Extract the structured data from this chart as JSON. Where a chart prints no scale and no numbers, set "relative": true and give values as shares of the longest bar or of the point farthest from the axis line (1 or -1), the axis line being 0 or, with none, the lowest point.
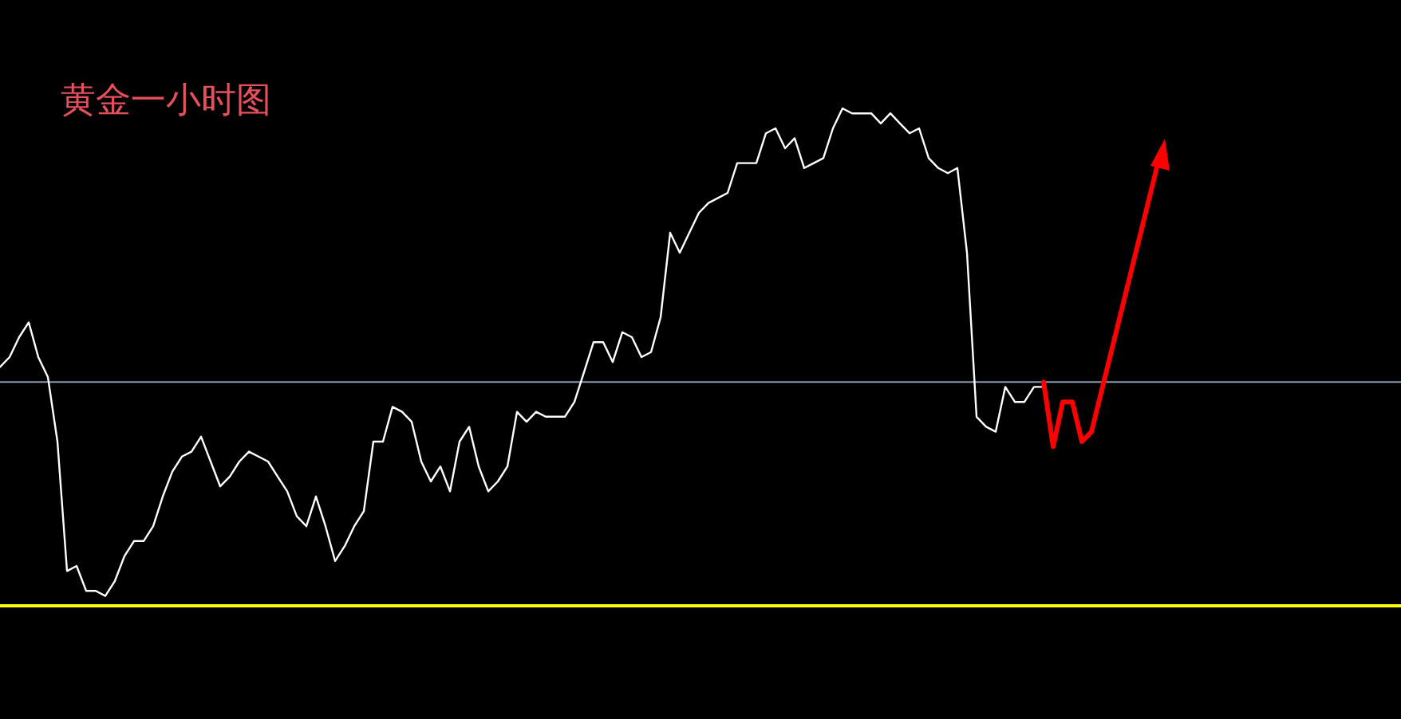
{
  "chart_data": {
    "type": "line",
    "title": "黄金一小时图",
    "relative": true,
    "categories": [
      null,
      null,
      null,
      null,
      null,
      null,
      null,
      null,
      null,
      null,
      null,
      null,
      null,
      null,
      null,
      null,
      null,
      null,
      null,
      null,
      null,
      null,
      null,
      null,
      null,
      null,
      null,
      null,
      null,
      null,
      null,
      null,
      null,
      null,
      null,
      null,
      null,
      null,
      null,
      null,
      null,
      null,
      null,
      null,
      null,
      null,
      null,
      null,
      null,
      null,
      null,
      null,
      null,
      null,
      null,
      null,
      null,
      null,
      null,
      null,
      null,
      null,
      null,
      null,
      null,
      null,
      null,
      null,
      null,
      null,
      null,
      null,
      null,
      null,
      null,
      null,
      null,
      null,
      null,
      null,
      null,
      null,
      null,
      null,
      null,
      null,
      null,
      null,
      null,
      null,
      null,
      null,
      null,
      null,
      null,
      null,
      null,
      null,
      null,
      null,
      null,
      null,
      null,
      null,
      null,
      null,
      null,
      null,
      null,
      null,
      null,
      null,
      null,
      null,
      null
    ],
    "series": [
      {
        "color": "#ffffff",
        "values": [
          0.48,
          0.5,
          0.54,
          0.57,
          0.5,
          0.46,
          0.33,
          0.07,
          0.08,
          0.03,
          0.03,
          0.02,
          0.05,
          0.1,
          0.13,
          0.13,
          0.16,
          0.22,
          0.27,
          0.3,
          0.31,
          0.34,
          0.29,
          0.24,
          0.26,
          0.29,
          0.31,
          0.3,
          0.29,
          0.26,
          0.23,
          0.18,
          0.16,
          0.22,
          0.16,
          0.09,
          0.12,
          0.16,
          0.19,
          0.33,
          0.33,
          0.4,
          0.39,
          0.37,
          0.29,
          0.25,
          0.28,
          0.23,
          0.33,
          0.36,
          0.28,
          0.23,
          0.25,
          0.28,
          0.39,
          0.37,
          0.39,
          0.38,
          0.38,
          0.38,
          0.41,
          0.47,
          0.53,
          0.53,
          0.49,
          0.55,
          0.54,
          0.5,
          0.51,
          0.58,
          0.75,
          0.71,
          0.75,
          0.79,
          0.81,
          0.82,
          0.83,
          0.89,
          0.89,
          0.89,
          0.95,
          0.96,
          0.92,
          0.94,
          0.88,
          0.89,
          0.9,
          0.96,
          1.0,
          0.99,
          0.99,
          0.99,
          0.97,
          0.99,
          0.97,
          0.95,
          0.96,
          0.9,
          0.88,
          0.87,
          0.88,
          0.71,
          0.38,
          0.36,
          0.35,
          0.44,
          0.41,
          0.41,
          0.44,
          0.44,
          null,
          null,
          null,
          null,
          null
        ]
      },
      {
        "color": "#ff0000",
        "values": [
          null,
          null,
          null,
          null,
          null,
          null,
          null,
          null,
          null,
          null,
          null,
          null,
          null,
          null,
          null,
          null,
          null,
          null,
          null,
          null,
          null,
          null,
          null,
          null,
          null,
          null,
          null,
          null,
          null,
          null,
          null,
          null,
          null,
          null,
          null,
          null,
          null,
          null,
          null,
          null,
          null,
          null,
          null,
          null,
          null,
          null,
          null,
          null,
          null,
          null,
          null,
          null,
          null,
          null,
          null,
          null,
          null,
          null,
          null,
          null,
          null,
          null,
          null,
          null,
          null,
          null,
          null,
          null,
          null,
          null,
          null,
          null,
          null,
          null,
          null,
          null,
          null,
          null,
          null,
          null,
          null,
          null,
          null,
          null,
          null,
          null,
          null,
          null,
          null,
          null,
          null,
          null,
          null,
          null,
          null,
          null,
          null,
          null,
          null,
          null,
          null,
          null,
          null,
          null,
          null,
          null,
          null,
          null,
          null,
          0.45,
          0.32,
          0.41,
          0.41,
          0.33,
          0.35
        ]
      }
    ],
    "ref_lines": [
      {
        "axis": "y",
        "value": 0.45,
        "color": "#8a9bb0"
      },
      {
        "axis": "y",
        "value": 0,
        "color": "#ffff00"
      }
    ]
  }
}
